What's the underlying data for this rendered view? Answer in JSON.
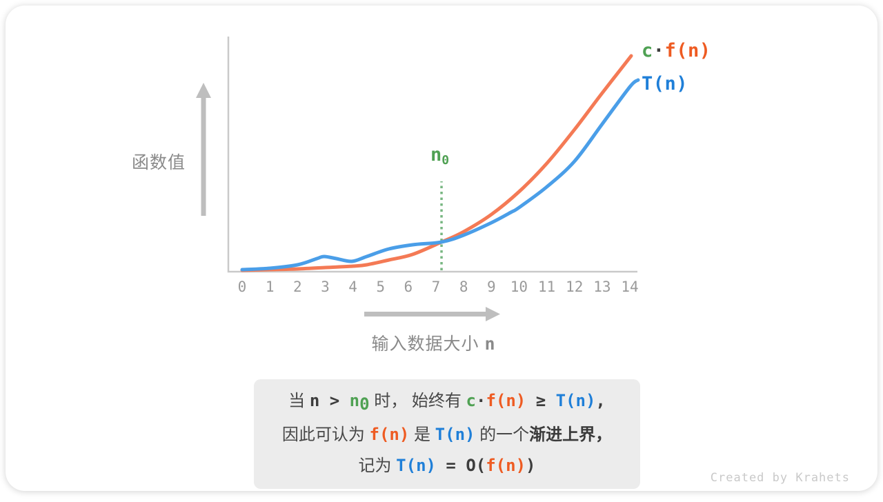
{
  "figure": {
    "credit": "Created by Krahets",
    "y_axis_label": "函数值",
    "x_axis_label_text": "输入数据大小",
    "x_axis_label_var": "n",
    "n0_base": "n",
    "n0_sub": "0",
    "legend_c": "c",
    "legend_dot": "·",
    "legend_fn": "f(n)",
    "legend_tn": "T(n)"
  },
  "colors": {
    "orange_text": "#EE5B22",
    "blue_text": "#1F7FD8",
    "green_text": "#4FA153",
    "axis_gray": "#C9C9C9",
    "arrow_gray": "#BEBEBE",
    "dotted_green": "#77B681",
    "caption_bg": "#ECECEC"
  },
  "chart_data": {
    "type": "line",
    "xlabel": "输入数据大小 n",
    "ylabel": "函数值",
    "x_ticks": [
      "0",
      "1",
      "2",
      "3",
      "4",
      "5",
      "6",
      "7",
      "8",
      "9",
      "10",
      "11",
      "12",
      "13",
      "14"
    ],
    "x_range": [
      0,
      14.3
    ],
    "y_axis_ticks": "none",
    "grid": false,
    "legend_position": "top-right",
    "n0": 7.2,
    "n0_line_value_range": [
      2,
      131
    ],
    "series": [
      {
        "name": "c·f(n)",
        "color": "#F47A55",
        "points": [
          [
            0,
            2
          ],
          [
            1,
            3
          ],
          [
            2,
            4
          ],
          [
            3,
            6
          ],
          [
            4,
            8
          ],
          [
            4.5,
            10
          ],
          [
            5.3,
            17
          ],
          [
            6.15,
            25
          ],
          [
            7.2,
            43
          ],
          [
            8,
            58
          ],
          [
            9,
            83
          ],
          [
            10,
            116
          ],
          [
            11,
            157
          ],
          [
            12,
            206
          ],
          [
            13,
            259
          ],
          [
            14.05,
            313
          ]
        ]
      },
      {
        "name": "T(n)",
        "color": "#4A9EE8",
        "points": [
          [
            0,
            3
          ],
          [
            1,
            5
          ],
          [
            2,
            10
          ],
          [
            2.7,
            19
          ],
          [
            2.96,
            22
          ],
          [
            3.4,
            19
          ],
          [
            3.96,
            15
          ],
          [
            4.5,
            22
          ],
          [
            5.3,
            33
          ],
          [
            6.15,
            39
          ],
          [
            7.2,
            43
          ],
          [
            8,
            53
          ],
          [
            9,
            71
          ],
          [
            9.7,
            86
          ],
          [
            10,
            93
          ],
          [
            11,
            123
          ],
          [
            12,
            160
          ],
          [
            13,
            214
          ],
          [
            14,
            268
          ],
          [
            14.3,
            278
          ]
        ]
      }
    ],
    "annotation": "当 n > n0 时， 始终有 c·f(n) ≥ T(n)，因此可认为 f(n) 是 T(n) 的一个渐进上界，记为 T(n) = O(f(n))"
  },
  "caption": {
    "l1": {
      "t1": "当 ",
      "n": "n",
      "gt": " > ",
      "n0": "n",
      "n0sub": "0",
      "t2": " 时， 始终有 ",
      "c": "c",
      "dot": "·",
      "fn": "f(n)",
      "ge": " ≥ ",
      "tn": "T(n)",
      "comma": ","
    },
    "l2": {
      "t1": "因此可认为 ",
      "fn": "f(n)",
      "t2": " 是 ",
      "tn": "T(n)",
      "t3": " 的一个",
      "bold": "渐进上界",
      "comma": "，"
    },
    "l3": {
      "t1": "记为 ",
      "tn": "T(n)",
      "eq": " = ",
      "o": "O(",
      "fn": "f(n)",
      "close": ")"
    }
  }
}
